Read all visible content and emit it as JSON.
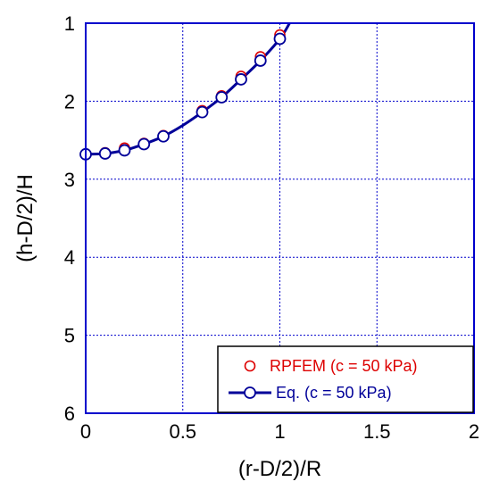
{
  "chart_data": {
    "type": "scatter",
    "xlabel": "(r-D/2)/R",
    "ylabel": "(h-D/2)/H",
    "xlim": [
      0,
      2
    ],
    "ylim": [
      1,
      6
    ],
    "y_inverted": true,
    "grid": true,
    "x_ticks": [
      "0",
      "0.5",
      "1",
      "1.5",
      "2"
    ],
    "y_ticks": [
      "1",
      "2",
      "3",
      "4",
      "5",
      "6"
    ],
    "legend_position": "bottom-right",
    "series": [
      {
        "name": "RPFEM (c = 50 kPa)",
        "kind": "markers",
        "color": "#dd0000",
        "x": [
          0,
          0.1,
          0.2,
          0.3,
          0.4,
          0.6,
          0.7,
          0.8,
          0.9,
          1.0
        ],
        "y": [
          2.68,
          2.66,
          2.6,
          2.54,
          2.44,
          2.12,
          1.93,
          1.68,
          1.43,
          1.15
        ]
      },
      {
        "name": "Eq. (c = 50 kPa)",
        "kind": "line+markers",
        "color": "#000099",
        "x": [
          0,
          0.1,
          0.2,
          0.3,
          0.4,
          0.6,
          0.7,
          0.8,
          0.9,
          1.0
        ],
        "y": [
          2.68,
          2.67,
          2.63,
          2.55,
          2.45,
          2.14,
          1.95,
          1.72,
          1.48,
          1.2
        ],
        "curve_x": [
          0,
          0.1,
          0.2,
          0.3,
          0.4,
          0.5,
          0.6,
          0.7,
          0.8,
          0.9,
          1.0,
          1.05
        ],
        "curve_y": [
          2.68,
          2.67,
          2.63,
          2.55,
          2.45,
          2.31,
          2.14,
          1.95,
          1.72,
          1.48,
          1.2,
          1.0
        ]
      }
    ]
  }
}
